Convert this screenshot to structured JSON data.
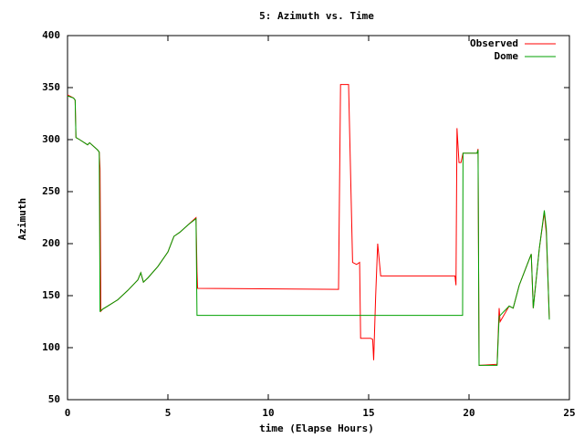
{
  "chart_data": {
    "type": "line",
    "title": "5: Azimuth vs. Time",
    "x_label": "time (Elapse Hours)",
    "y_label": "Azimuth",
    "xlim": [
      0,
      25
    ],
    "xticks": [
      0,
      5,
      10,
      15,
      20,
      25
    ],
    "ylim": [
      50,
      400
    ],
    "yticks": [
      50,
      100,
      150,
      200,
      250,
      300,
      350,
      400
    ],
    "grid": false,
    "legend": "top-right",
    "series": [
      {
        "name": "Observed",
        "color": "#ff0000",
        "x": [
          0,
          0.3,
          0.38,
          0.42,
          0.6,
          1.0,
          1.1,
          1.5,
          1.58,
          1.62,
          1.66,
          1.75,
          2.0,
          2.5,
          3.0,
          3.5,
          3.65,
          3.78,
          4.0,
          4.5,
          5.0,
          5.3,
          5.6,
          6.0,
          6.4,
          6.42,
          6.45,
          6.48,
          13.5,
          13.6,
          14.0,
          14.2,
          14.4,
          14.55,
          14.6,
          15.1,
          15.2,
          15.25,
          15.35,
          15.45,
          15.6,
          19.3,
          19.35,
          19.4,
          19.5,
          19.6,
          19.7,
          20.4,
          20.45,
          20.5,
          21.4,
          21.5,
          21.55,
          22.0,
          22.2,
          22.5,
          23.0,
          23.1,
          23.2,
          23.5,
          23.75,
          23.85,
          24.0
        ],
        "values": [
          343,
          340,
          338,
          302,
          300,
          295,
          297,
          290,
          288,
          272,
          135,
          137,
          140,
          146,
          155,
          165,
          172,
          163,
          167,
          178,
          192,
          207,
          211,
          218,
          225,
          205,
          173,
          157,
          156,
          353,
          353,
          182,
          180,
          182,
          109,
          109,
          108,
          88,
          150,
          200,
          169,
          169,
          160,
          311,
          278,
          278,
          287,
          287,
          291,
          83,
          84,
          138,
          125,
          140,
          138,
          160,
          185,
          190,
          138,
          195,
          230,
          210,
          128
        ]
      },
      {
        "name": "Dome",
        "color": "#00a000",
        "x": [
          0,
          0.3,
          0.38,
          0.42,
          0.6,
          1.0,
          1.1,
          1.5,
          1.58,
          1.62,
          1.75,
          2.0,
          2.5,
          3.0,
          3.5,
          3.65,
          3.78,
          4.0,
          4.5,
          5.0,
          5.3,
          5.6,
          6.0,
          6.4,
          6.45,
          19.68,
          19.7,
          20.4,
          20.45,
          20.5,
          21.4,
          21.5,
          22.0,
          22.2,
          22.5,
          23.0,
          23.1,
          23.2,
          23.5,
          23.75,
          23.85,
          24.0
        ],
        "values": [
          342,
          340,
          338,
          302,
          300,
          295,
          297,
          290,
          288,
          135,
          137,
          140,
          146,
          155,
          165,
          172,
          163,
          167,
          178,
          192,
          207,
          211,
          218,
          224,
          131,
          131,
          287,
          287,
          290,
          83,
          83,
          130,
          140,
          138,
          160,
          185,
          190,
          138,
          195,
          232,
          215,
          127
        ]
      }
    ]
  }
}
